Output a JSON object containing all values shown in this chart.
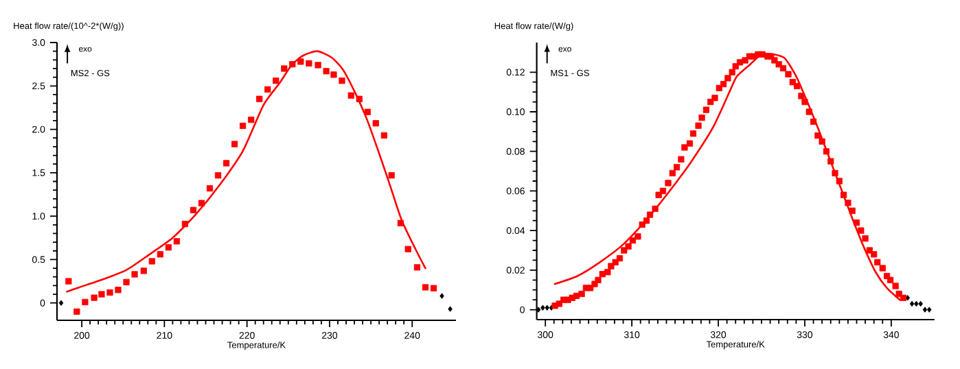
{
  "chart_data": [
    {
      "type": "scatter",
      "ylabel": "Heat flow rate/(10^-2*(W/g))",
      "xlabel": "Temperature/K",
      "annotations": [
        "exo",
        "MS2 - GS"
      ],
      "xlim": [
        197,
        245.3
      ],
      "ylim": [
        -0.2,
        3.0
      ],
      "xticks": [
        200,
        210,
        220,
        230,
        240
      ],
      "yticks": [
        0,
        0.5,
        {
          "value": 1,
          "label": "1.0"
        },
        1.5,
        {
          "value": 2,
          "label": "2.0"
        },
        2.5,
        {
          "value": 3,
          "label": "3.0"
        }
      ],
      "series": [
        {
          "marker": "diamond",
          "color": "#000000",
          "x": [
            197.5,
            243.6,
            244.6
          ],
          "values": [
            0.0,
            0.08,
            -0.07
          ]
        },
        {
          "marker": "square",
          "color": "#ff0000",
          "x": [
            198.4,
            199.4,
            200.4,
            201.5,
            202.4,
            203.4,
            204.4,
            205.4,
            206.4,
            207.5,
            208.5,
            209.5,
            210.5,
            211.5,
            212.5,
            213.5,
            214.5,
            215.5,
            216.5,
            217.5,
            218.5,
            219.5,
            220.5,
            221.5,
            222.5,
            223.5,
            224.5,
            225.5,
            226.5,
            227.5,
            228.6,
            229.6,
            230.5,
            231.5,
            232.6,
            233.6,
            234.6,
            235.6,
            236.6,
            237.5,
            238.6,
            239.5,
            240.6,
            241.6,
            242.6
          ],
          "values": [
            0.25,
            -0.1,
            0.01,
            0.06,
            0.1,
            0.12,
            0.15,
            0.24,
            0.33,
            0.37,
            0.48,
            0.56,
            0.64,
            0.71,
            0.91,
            1.07,
            1.15,
            1.32,
            1.47,
            1.61,
            1.83,
            2.04,
            2.11,
            2.35,
            2.46,
            2.56,
            2.7,
            2.75,
            2.78,
            2.76,
            2.74,
            2.67,
            2.63,
            2.56,
            2.39,
            2.35,
            2.2,
            2.07,
            1.93,
            1.47,
            0.92,
            0.62,
            0.41,
            0.18,
            0.17
          ]
        },
        {
          "type": "line",
          "marker": "none",
          "color": "#ff0000",
          "x": [
            198.2,
            199.7,
            202.5,
            205.4,
            208.2,
            211.0,
            213.8,
            216.7,
            219.5,
            222.0,
            224.0,
            225.4,
            226.8,
            228.5,
            230.2,
            231.6,
            233.0,
            234.5,
            235.9,
            237.3,
            238.7,
            240.4,
            241.6
          ],
          "values": [
            0.13,
            0.18,
            0.27,
            0.38,
            0.56,
            0.75,
            1.02,
            1.36,
            1.75,
            2.28,
            2.54,
            2.74,
            2.85,
            2.9,
            2.83,
            2.69,
            2.44,
            2.12,
            1.75,
            1.36,
            0.96,
            0.62,
            0.4
          ]
        }
      ]
    },
    {
      "type": "scatter",
      "ylabel": "Heat flow rate/(W/g)",
      "xlabel": "Temperature/K",
      "annotations": [
        "exo",
        "MS1 - GS"
      ],
      "xlim": [
        299,
        345
      ],
      "ylim": [
        -0.005,
        0.135
      ],
      "xticks": [
        300,
        310,
        320,
        330,
        340
      ],
      "yticks": [
        0,
        0.02,
        0.04,
        0.06,
        0.08,
        {
          "value": 0.1,
          "label": "0.10"
        },
        0.12
      ],
      "series": [
        {
          "marker": "diamond",
          "color": "#000000",
          "x": [
            299.2,
            299.7,
            300.2,
            300.7,
            341.9,
            342.4,
            342.9,
            343.4,
            343.9,
            344.4
          ],
          "values": [
            0.0,
            0.001,
            0.001,
            0.001,
            0.006,
            0.003,
            0.003,
            0.003,
            0.0,
            0.0
          ]
        },
        {
          "marker": "square",
          "color": "#ff0000",
          "x": [
            301.1,
            301.6,
            302.1,
            302.6,
            303.1,
            303.6,
            304.2,
            304.7,
            305.2,
            305.7,
            306.1,
            306.6,
            307.2,
            307.6,
            308.1,
            308.6,
            309.1,
            309.6,
            310.1,
            310.7,
            311.2,
            311.7,
            312.1,
            312.7,
            313.1,
            313.6,
            314.2,
            314.7,
            315.2,
            315.7,
            316.1,
            316.7,
            317.1,
            317.7,
            318.1,
            318.6,
            319.1,
            319.6,
            320.1,
            320.6,
            321.1,
            321.6,
            322.0,
            322.5,
            323.1,
            323.6,
            324.1,
            324.6,
            325.1,
            325.7,
            326.1,
            326.5,
            327.0,
            327.5,
            328.1,
            328.6,
            329.1,
            329.6,
            330.0,
            330.5,
            331.0,
            331.5,
            332.0,
            332.5,
            333.0,
            333.5,
            334.0,
            334.5,
            335.0,
            335.5,
            336.0,
            336.5,
            337.0,
            337.5,
            338.0,
            338.4,
            339.0,
            339.5,
            339.9,
            340.5,
            340.9,
            341.4
          ],
          "values": [
            0.002,
            0.003,
            0.005,
            0.005,
            0.006,
            0.007,
            0.008,
            0.011,
            0.011,
            0.013,
            0.015,
            0.018,
            0.019,
            0.022,
            0.024,
            0.026,
            0.03,
            0.032,
            0.035,
            0.037,
            0.043,
            0.045,
            0.048,
            0.051,
            0.058,
            0.06,
            0.064,
            0.069,
            0.072,
            0.076,
            0.082,
            0.084,
            0.089,
            0.093,
            0.097,
            0.101,
            0.105,
            0.107,
            0.112,
            0.114,
            0.117,
            0.12,
            0.123,
            0.125,
            0.126,
            0.128,
            0.128,
            0.129,
            0.129,
            0.128,
            0.128,
            0.126,
            0.124,
            0.122,
            0.119,
            0.115,
            0.113,
            0.108,
            0.105,
            0.1,
            0.095,
            0.088,
            0.085,
            0.08,
            0.075,
            0.069,
            0.065,
            0.058,
            0.054,
            0.05,
            0.044,
            0.04,
            0.036,
            0.03,
            0.028,
            0.024,
            0.021,
            0.017,
            0.015,
            0.012,
            0.008,
            0.006
          ]
        },
        {
          "type": "line",
          "marker": "none",
          "color": "#ff0000",
          "x": [
            301.1,
            303.7,
            306.3,
            309.0,
            311.6,
            314.2,
            316.9,
            319.5,
            321.9,
            322.4,
            323.7,
            325.0,
            326.4,
            327.7,
            329.0,
            330.3,
            331.6,
            332.9,
            334.3,
            335.6,
            336.9,
            338.2,
            339.5,
            341.0
          ],
          "values": [
            0.013,
            0.017,
            0.024,
            0.033,
            0.045,
            0.059,
            0.075,
            0.093,
            0.116,
            0.119,
            0.124,
            0.129,
            0.129,
            0.127,
            0.118,
            0.105,
            0.091,
            0.076,
            0.06,
            0.045,
            0.031,
            0.019,
            0.011,
            0.005
          ]
        }
      ]
    }
  ]
}
